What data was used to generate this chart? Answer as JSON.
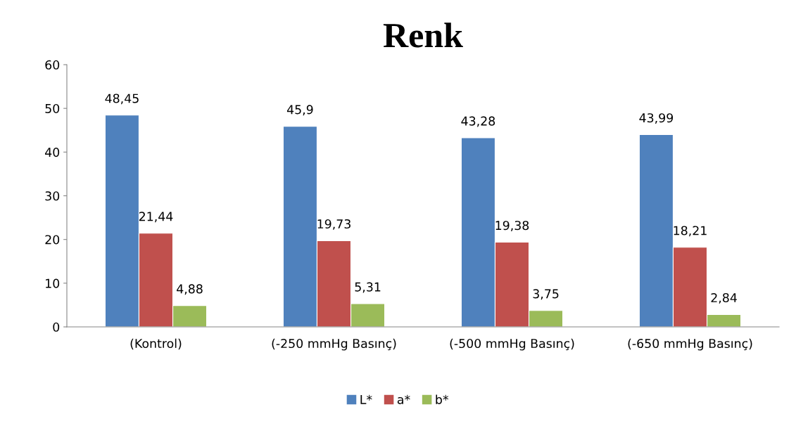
{
  "chart_data": {
    "type": "bar",
    "title": "Renk",
    "categories": [
      "(Kontrol)",
      "(-250 mmHg Basınç)",
      "(-500 mmHg Basınç)",
      "(-650 mmHg Basınç)"
    ],
    "series": [
      {
        "name": "L*",
        "color": "#4f81bd",
        "values": [
          48.45,
          45.9,
          43.28,
          43.99
        ],
        "value_labels": [
          "48,45",
          "45,9",
          "43,28",
          "43,99"
        ]
      },
      {
        "name": "a*",
        "color": "#c0504d",
        "values": [
          21.44,
          19.73,
          19.38,
          18.21
        ],
        "value_labels": [
          "21,44",
          "19,73",
          "19,38",
          "18,21"
        ]
      },
      {
        "name": "b*",
        "color": "#9bbb59",
        "values": [
          4.88,
          5.31,
          3.75,
          2.84
        ],
        "value_labels": [
          "4,88",
          "5,31",
          "3,75",
          "2,84"
        ]
      }
    ],
    "ylim": [
      0,
      60
    ],
    "yticks": [
      0,
      10,
      20,
      30,
      40,
      50,
      60
    ],
    "grid": false,
    "legend": "bottom"
  }
}
